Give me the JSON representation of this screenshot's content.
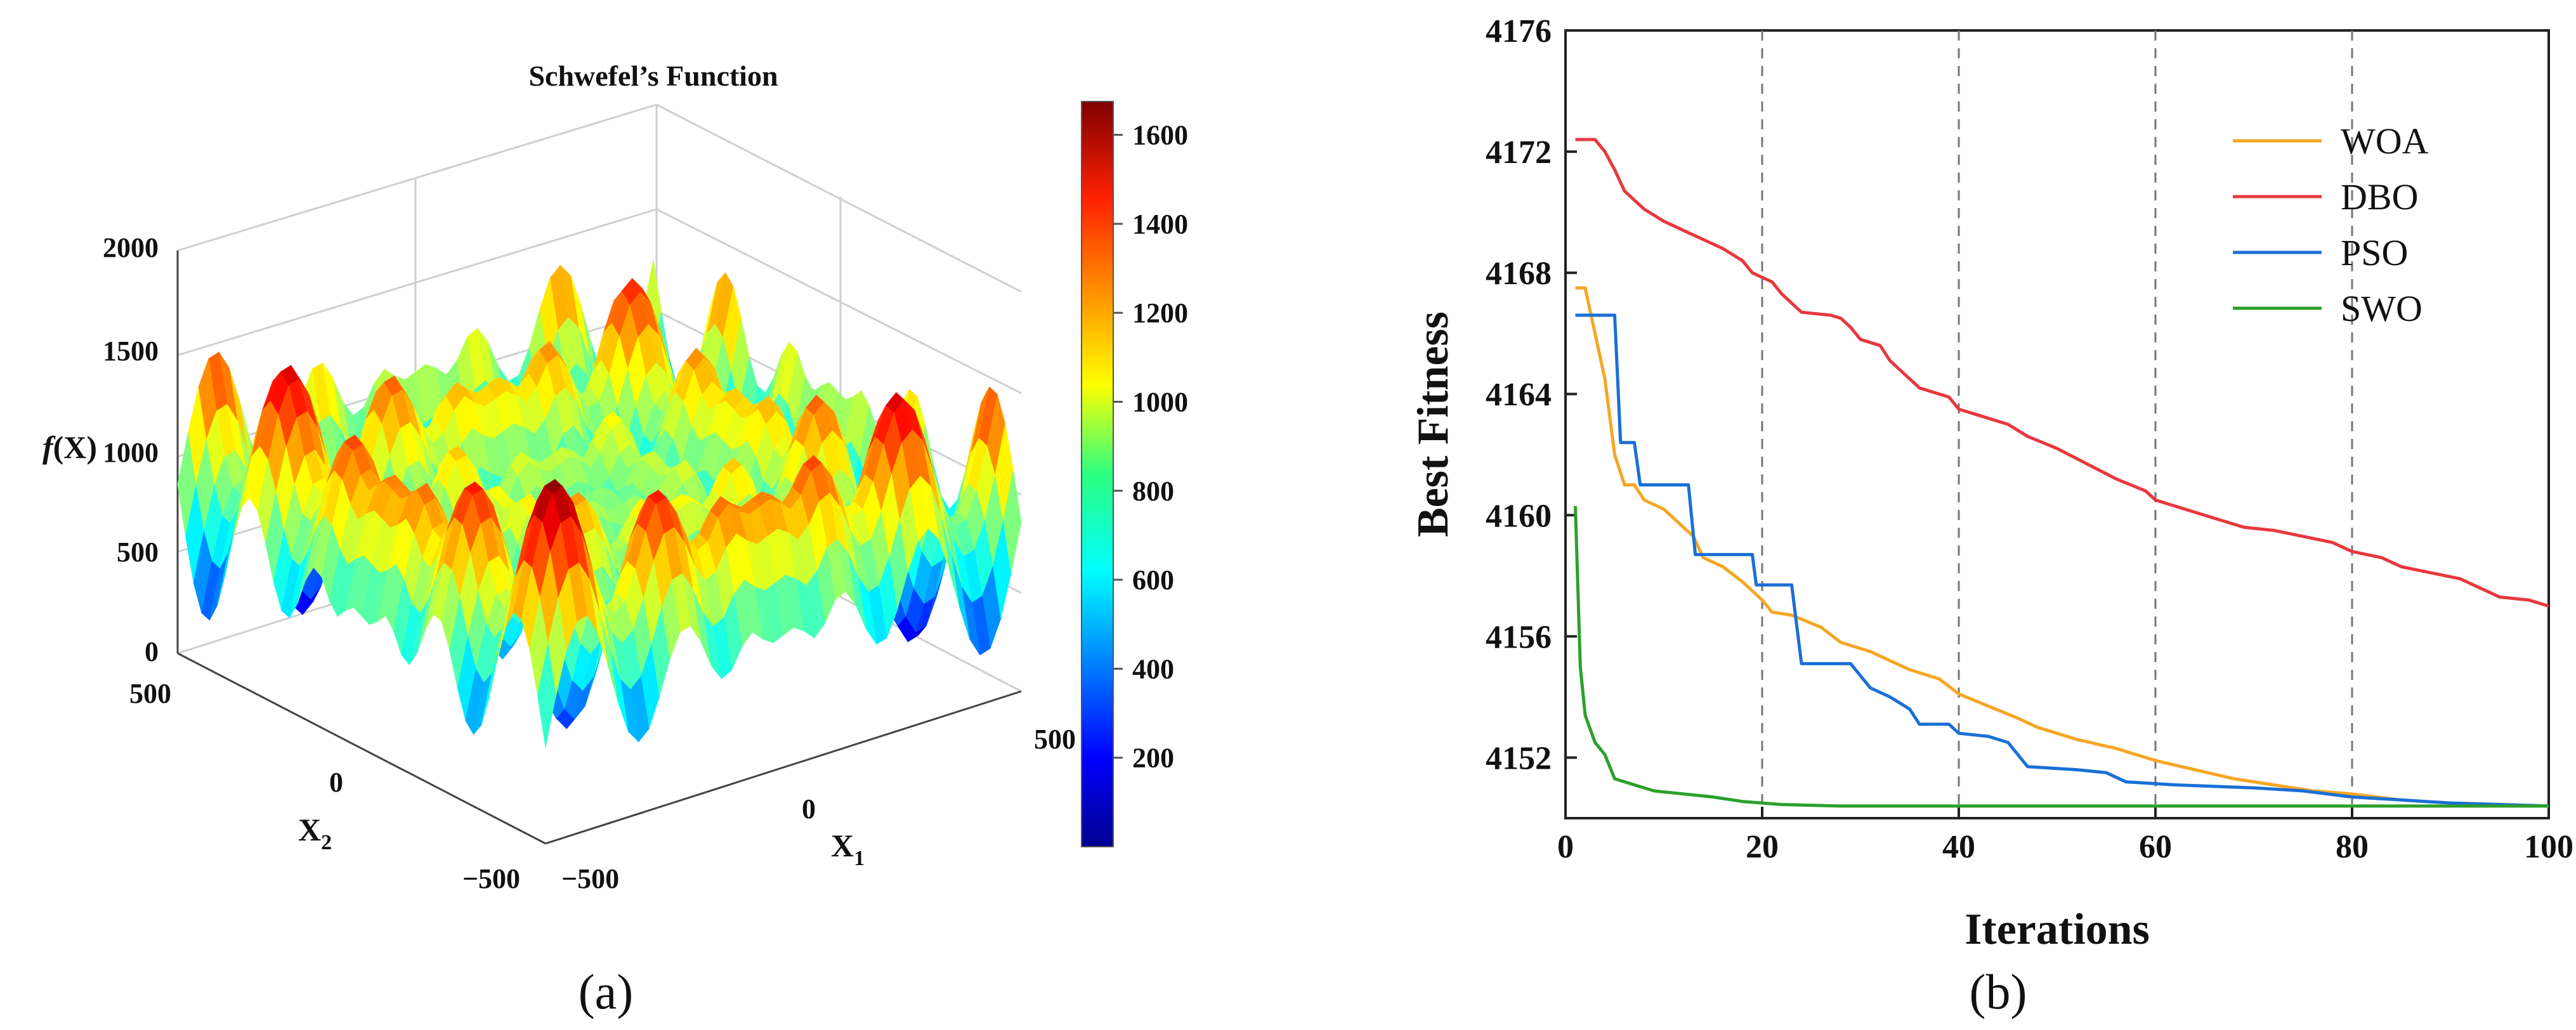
{
  "panels": {
    "a": "(a)",
    "b": "(b)"
  },
  "chart_data": [
    {
      "type": "surface3d",
      "title": "Schwefel’s Function",
      "zlabel": "f(X)",
      "xlabel": "X1",
      "ylabel": "X2",
      "xlim": [
        -500,
        500
      ],
      "ylim": [
        -500,
        500
      ],
      "zlim": [
        0,
        2000
      ],
      "x_ticks": [
        "−500",
        "0",
        "500"
      ],
      "y_ticks": [
        "−500",
        "0",
        "500"
      ],
      "z_ticks": [
        "0",
        "500",
        "1000",
        "1500",
        "2000"
      ],
      "colorbar": {
        "min": 0,
        "max": 1675,
        "ticks": [
          200,
          400,
          600,
          800,
          1000,
          1200,
          1400,
          1600
        ],
        "colormap": "jet"
      }
    },
    {
      "type": "line",
      "xlabel": "Iterations",
      "ylabel": "Best Fitness",
      "xlim": [
        0,
        100
      ],
      "ylim": [
        4150,
        4176
      ],
      "x_ticks": [
        0,
        20,
        40,
        60,
        80,
        100
      ],
      "y_ticks": [
        4152,
        4156,
        4160,
        4164,
        4168,
        4172,
        4176
      ],
      "vgrid_dashed": [
        20,
        40,
        60,
        80
      ],
      "legend_position": "top-right",
      "series": [
        {
          "name": "WOA",
          "color": "#f5a623",
          "points": [
            [
              1,
              4167.5
            ],
            [
              2,
              4167.5
            ],
            [
              3,
              4166
            ],
            [
              4,
              4164.5
            ],
            [
              5,
              4162
            ],
            [
              6,
              4161
            ],
            [
              7,
              4161
            ],
            [
              8,
              4160.5
            ],
            [
              10,
              4160.2
            ],
            [
              12,
              4159.6
            ],
            [
              13,
              4159.3
            ],
            [
              14,
              4158.6
            ],
            [
              16,
              4158.3
            ],
            [
              18,
              4157.8
            ],
            [
              20,
              4157.2
            ],
            [
              21,
              4156.8
            ],
            [
              23,
              4156.7
            ],
            [
              26,
              4156.3
            ],
            [
              28,
              4155.8
            ],
            [
              31,
              4155.5
            ],
            [
              33,
              4155.2
            ],
            [
              35,
              4154.9
            ],
            [
              38,
              4154.6
            ],
            [
              40,
              4154.1
            ],
            [
              43,
              4153.7
            ],
            [
              46,
              4153.3
            ],
            [
              48,
              4153
            ],
            [
              52,
              4152.6
            ],
            [
              56,
              4152.3
            ],
            [
              60,
              4151.9
            ],
            [
              64,
              4151.6
            ],
            [
              68,
              4151.3
            ],
            [
              72,
              4151.1
            ],
            [
              76,
              4150.9
            ],
            [
              80,
              4150.8
            ],
            [
              85,
              4150.6
            ],
            [
              90,
              4150.5
            ],
            [
              95,
              4150.45
            ],
            [
              100,
              4150.4
            ]
          ]
        },
        {
          "name": "DBO",
          "color": "#e8383d",
          "points": [
            [
              1,
              4172.4
            ],
            [
              2,
              4172.4
            ],
            [
              3,
              4172.4
            ],
            [
              4,
              4172
            ],
            [
              5,
              4171.4
            ],
            [
              6,
              4170.7
            ],
            [
              8,
              4170.1
            ],
            [
              10,
              4169.7
            ],
            [
              12,
              4169.4
            ],
            [
              14,
              4169.1
            ],
            [
              16,
              4168.8
            ],
            [
              18,
              4168.4
            ],
            [
              19,
              4168
            ],
            [
              21,
              4167.7
            ],
            [
              22,
              4167.3
            ],
            [
              24,
              4166.7
            ],
            [
              27,
              4166.6
            ],
            [
              28,
              4166.5
            ],
            [
              29,
              4166.2
            ],
            [
              30,
              4165.8
            ],
            [
              32,
              4165.6
            ],
            [
              33,
              4165.1
            ],
            [
              35,
              4164.5
            ],
            [
              36,
              4164.2
            ],
            [
              39,
              4163.9
            ],
            [
              40,
              4163.5
            ],
            [
              42,
              4163.3
            ],
            [
              45,
              4163
            ],
            [
              47,
              4162.6
            ],
            [
              50,
              4162.2
            ],
            [
              53,
              4161.7
            ],
            [
              56,
              4161.2
            ],
            [
              59,
              4160.8
            ],
            [
              60,
              4160.5
            ],
            [
              63,
              4160.2
            ],
            [
              66,
              4159.9
            ],
            [
              69,
              4159.6
            ],
            [
              72,
              4159.5
            ],
            [
              75,
              4159.3
            ],
            [
              78,
              4159.1
            ],
            [
              80,
              4158.8
            ],
            [
              83,
              4158.6
            ],
            [
              85,
              4158.3
            ],
            [
              88,
              4158.1
            ],
            [
              91,
              4157.9
            ],
            [
              93,
              4157.6
            ],
            [
              95,
              4157.3
            ],
            [
              98,
              4157.2
            ],
            [
              100,
              4157
            ]
          ]
        },
        {
          "name": "PSO",
          "color": "#1a6fd6",
          "points": [
            [
              1,
              4166.6
            ],
            [
              5,
              4166.6
            ],
            [
              5.6,
              4162.4
            ],
            [
              7,
              4162.4
            ],
            [
              7.6,
              4161
            ],
            [
              12.5,
              4161
            ],
            [
              13.2,
              4158.7
            ],
            [
              19,
              4158.7
            ],
            [
              19.4,
              4157.7
            ],
            [
              23,
              4157.7
            ],
            [
              24,
              4155.1
            ],
            [
              29,
              4155.1
            ],
            [
              31,
              4154.3
            ],
            [
              33,
              4154
            ],
            [
              35,
              4153.6
            ],
            [
              36,
              4153.1
            ],
            [
              39,
              4153.1
            ],
            [
              40,
              4152.8
            ],
            [
              43,
              4152.7
            ],
            [
              45,
              4152.5
            ],
            [
              47,
              4151.7
            ],
            [
              52,
              4151.6
            ],
            [
              55,
              4151.5
            ],
            [
              57,
              4151.2
            ],
            [
              62,
              4151.1
            ],
            [
              70,
              4151
            ],
            [
              75,
              4150.9
            ],
            [
              80,
              4150.7
            ],
            [
              85,
              4150.6
            ],
            [
              90,
              4150.5
            ],
            [
              95,
              4150.45
            ],
            [
              100,
              4150.4
            ]
          ]
        },
        {
          "name": "SWO",
          "color": "#2ca02c",
          "points": [
            [
              1,
              4160.3
            ],
            [
              1.5,
              4155
            ],
            [
              2,
              4153.4
            ],
            [
              3,
              4152.5
            ],
            [
              4,
              4152.1
            ],
            [
              5,
              4151.3
            ],
            [
              7,
              4151.1
            ],
            [
              9,
              4150.9
            ],
            [
              12,
              4150.8
            ],
            [
              15,
              4150.7
            ],
            [
              18,
              4150.55
            ],
            [
              22,
              4150.45
            ],
            [
              28,
              4150.4
            ],
            [
              40,
              4150.4
            ],
            [
              60,
              4150.4
            ],
            [
              80,
              4150.4
            ],
            [
              100,
              4150.4
            ]
          ]
        }
      ]
    }
  ]
}
